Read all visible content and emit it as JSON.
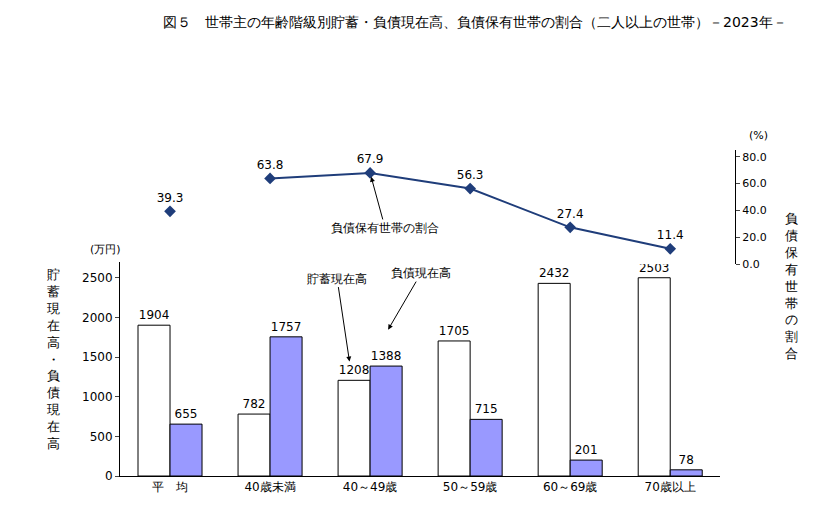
{
  "chart_data": {
    "type": "bar",
    "title": "図５　世帯主の年齢階級別貯蓄・負債現在高、負債保有世帯の割合（二人以上の世帯）－2023年－",
    "ylabel": "貯蓄現在高・負債現在高",
    "yunit": "(万円)",
    "y2label": "負債保有世帯の割合",
    "y2unit": "(%)",
    "categories": [
      "平　均",
      "40歳未満",
      "40～49歳",
      "50～59歳",
      "60～69歳",
      "70歳以上"
    ],
    "series": [
      {
        "name": "貯蓄現在高",
        "type": "bar",
        "color": "#ffffff",
        "values": [
          1904,
          782,
          1208,
          1705,
          2432,
          2503
        ]
      },
      {
        "name": "負債現在高",
        "type": "bar",
        "color": "#9999ff",
        "values": [
          655,
          1757,
          1388,
          715,
          201,
          78
        ]
      },
      {
        "name": "負債保有世帯の割合",
        "type": "line",
        "axis": "y2",
        "color": "#1f3d7a",
        "marker": "diamond",
        "values": [
          null,
          63.8,
          67.9,
          56.3,
          27.4,
          11.4
        ]
      },
      {
        "type": "scatter",
        "axis": "y2",
        "color": "#1f3d7a",
        "marker": "diamond",
        "values": [
          39.3,
          null,
          null,
          null,
          null,
          null
        ]
      }
    ],
    "ylim": [
      0,
      2700
    ],
    "yticks": [
      0,
      500,
      1000,
      1500,
      2000,
      2500
    ],
    "y2lim": [
      0,
      85
    ],
    "y2ticks": [
      {
        "value": 0,
        "label": "0.0"
      },
      {
        "value": 20,
        "label": "20.0"
      },
      {
        "value": 40,
        "label": "40.0"
      },
      {
        "value": 60,
        "label": "60.0"
      },
      {
        "value": 80,
        "label": "80.0"
      }
    ],
    "data_labels": true,
    "grid": false
  }
}
